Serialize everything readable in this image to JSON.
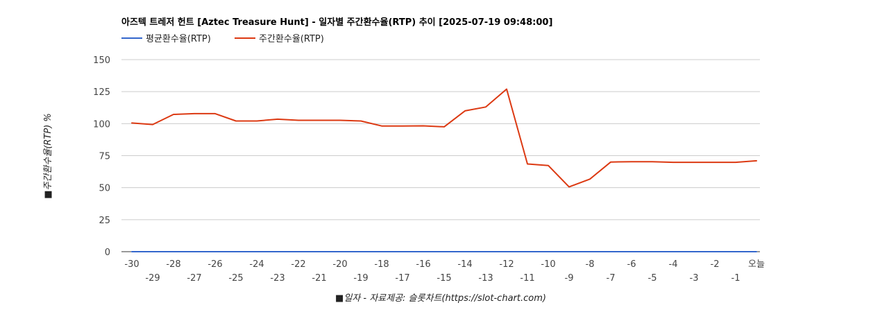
{
  "chart_data": {
    "type": "line",
    "title": "아즈텍 트레저 헌트 [Aztec Treasure Hunt] - 일자별 주간환수율(RTP) 추이 [2025-07-19 09:48:00]",
    "xlabel": "■일자 - 자료제공: 슬롯차트(https://slot-chart.com)",
    "ylabel": "■주간환수율(RTP) %",
    "ylim": [
      0,
      150
    ],
    "yticks": [
      "0",
      "25",
      "50",
      "75",
      "100",
      "125",
      "150"
    ],
    "grid": true,
    "legend_position": "top-left",
    "categories": [
      "-30",
      "-29",
      "-28",
      "-27",
      "-26",
      "-25",
      "-24",
      "-23",
      "-22",
      "-21",
      "-20",
      "-19",
      "-18",
      "-17",
      "-16",
      "-15",
      "-14",
      "-13",
      "-12",
      "-11",
      "-10",
      "-9",
      "-8",
      "-7",
      "-6",
      "-5",
      "-4",
      "-3",
      "-2",
      "-1",
      "오늘"
    ],
    "series": [
      {
        "name": "평균환수율(RTP)",
        "color": "#3366cc",
        "values": [
          0,
          0,
          0,
          0,
          0,
          0,
          0,
          0,
          0,
          0,
          0,
          0,
          0,
          0,
          0,
          0,
          0,
          0,
          0,
          0,
          0,
          0,
          0,
          0,
          0,
          0,
          0,
          0,
          0,
          0,
          0
        ]
      },
      {
        "name": "주간환수율(RTP)",
        "color": "#dc3912",
        "values": [
          100.5,
          99.3,
          107.2,
          107.8,
          107.8,
          102.1,
          102.1,
          103.5,
          102.6,
          102.6,
          102.6,
          102.1,
          98.2,
          98.2,
          98.3,
          97.5,
          110.0,
          113.0,
          127.0,
          68.5,
          67.3,
          50.6,
          56.7,
          70.0,
          70.3,
          70.3,
          69.8,
          69.8,
          69.8,
          69.8,
          71.0
        ]
      }
    ]
  }
}
